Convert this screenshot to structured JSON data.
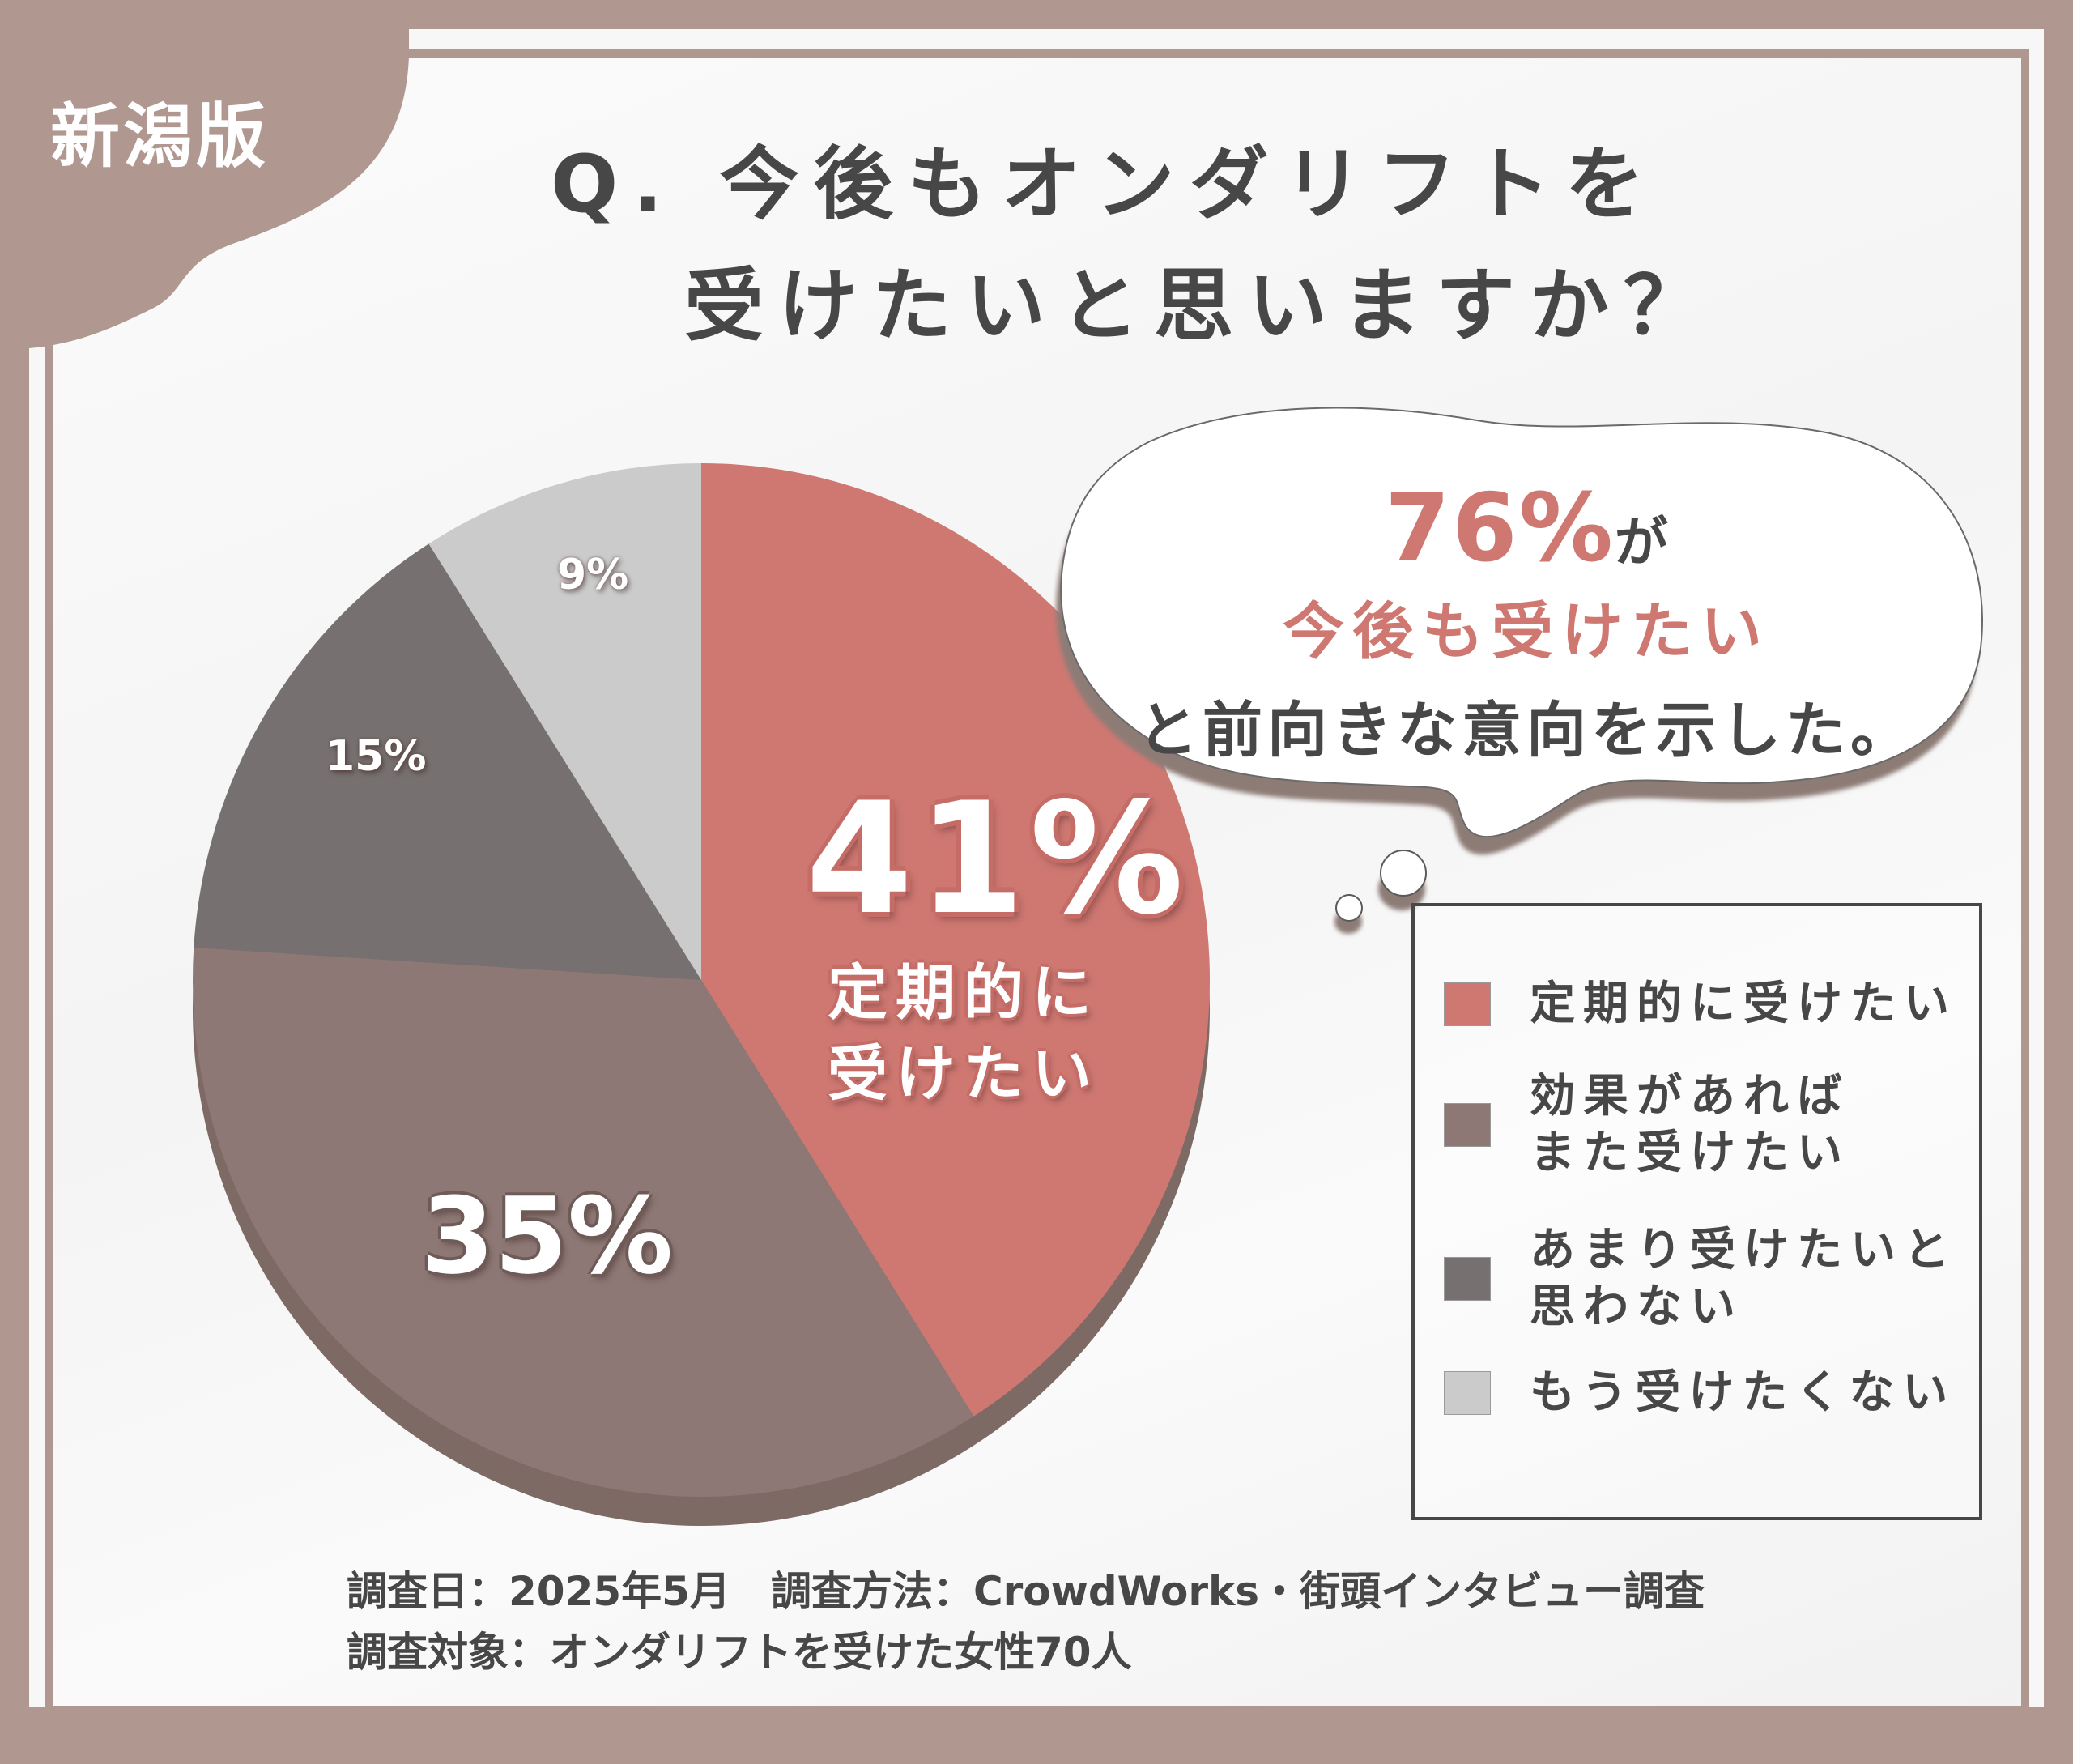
{
  "badge": {
    "label": "新潟版"
  },
  "title": {
    "line1": "Q. 今後もオンダリフトを",
    "line2": "受けたいと思いますか？"
  },
  "bubble": {
    "highlight_value": "76%",
    "highlight_suffix": "が",
    "line2": "今後も受けたい",
    "line3": "と前向きな意向を示した。"
  },
  "pie_labels": {
    "regular": {
      "value": "41%",
      "sub1": "定期的に",
      "sub2": "受けたい"
    },
    "if_effective": {
      "value": "35%"
    },
    "not_really": {
      "value": "15%"
    },
    "never": {
      "value": "9%"
    }
  },
  "legend": {
    "items": [
      {
        "label_lines": [
          "定期的に受けたい"
        ],
        "color": "#cf7872"
      },
      {
        "label_lines": [
          "効果があれば",
          "また受けたい"
        ],
        "color": "#8d7875"
      },
      {
        "label_lines": [
          "あまり受けたいと",
          "思わない"
        ],
        "color": "#767170"
      },
      {
        "label_lines": [
          "もう受けたくない"
        ],
        "color": "#cbcbcb"
      }
    ]
  },
  "footer": {
    "line1": "調査日：2025年5月　調査方法：CrowdWorks・街頭インタビュー調査",
    "line2": "調査対象：オンダリフトを受けた女性70人"
  },
  "colors": {
    "frame": "#b09890",
    "text_dark": "#474747",
    "accent": "#cf7872",
    "rim": "#7e6a64"
  },
  "chart_data": {
    "type": "pie",
    "title": "Q. 今後もオンダリフトを受けたいと思いますか？",
    "categories": [
      "定期的に受けたい",
      "効果があればまた受けたい",
      "あまり受けたいと思わない",
      "もう受けたくない"
    ],
    "values": [
      41,
      35,
      15,
      9
    ],
    "unit": "%",
    "colors": [
      "#cf7872",
      "#8d7875",
      "#767170",
      "#cbcbcb"
    ],
    "start_angle": "12 o'clock",
    "direction": "clockwise",
    "legend_position": "right",
    "annotations": [
      "76%が今後も受けたいと前向きな意向を示した。"
    ],
    "sample": "オンダリフトを受けた女性70人"
  }
}
